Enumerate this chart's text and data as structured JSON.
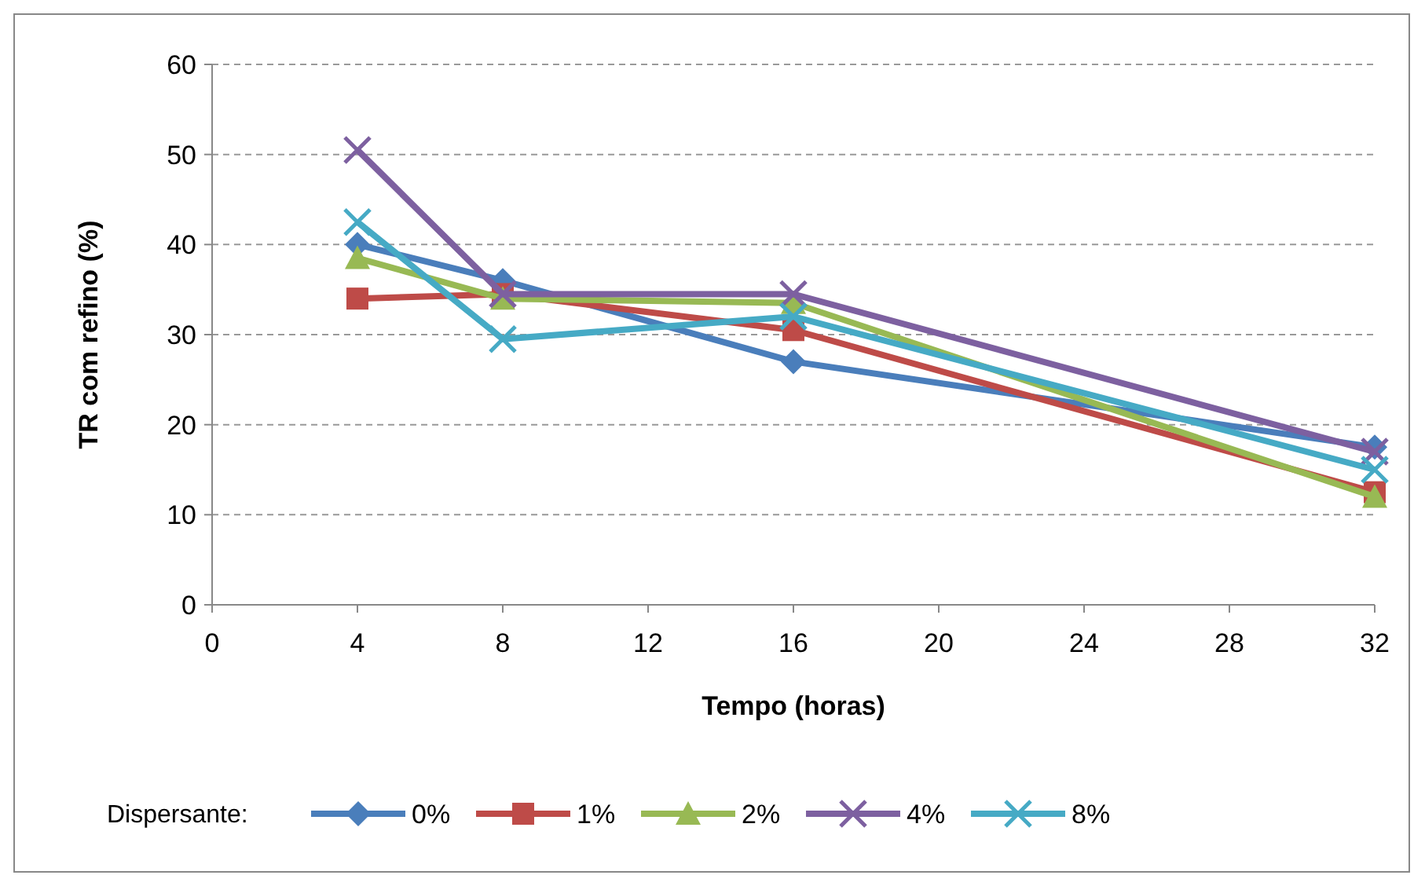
{
  "chart_data": {
    "type": "line",
    "xlabel": "Tempo (horas)",
    "ylabel": "TR com refino (%)",
    "legend_title": "Dispersante:",
    "x": [
      4,
      8,
      16,
      32
    ],
    "xlim": [
      0,
      32
    ],
    "xticks": [
      0,
      4,
      8,
      12,
      16,
      20,
      24,
      28,
      32
    ],
    "ylim": [
      0,
      60
    ],
    "yticks": [
      0,
      10,
      20,
      30,
      40,
      50,
      60
    ],
    "grid": "y",
    "legend": "bottom",
    "series": [
      {
        "name": "0%",
        "color": "#4a7ebb",
        "marker": "diamond",
        "values": [
          40,
          36,
          27,
          17.5
        ]
      },
      {
        "name": "1%",
        "color": "#be4b48",
        "marker": "square",
        "values": [
          34,
          34.5,
          30.5,
          12.5
        ]
      },
      {
        "name": "2%",
        "color": "#98b954",
        "marker": "triangle",
        "values": [
          38.5,
          34,
          33.5,
          12
        ]
      },
      {
        "name": "4%",
        "color": "#7d60a0",
        "marker": "cross",
        "values": [
          50.5,
          34.5,
          34.5,
          17
        ]
      },
      {
        "name": "8%",
        "color": "#46aac5",
        "marker": "cross",
        "values": [
          42.5,
          29.5,
          32,
          15
        ]
      }
    ]
  }
}
